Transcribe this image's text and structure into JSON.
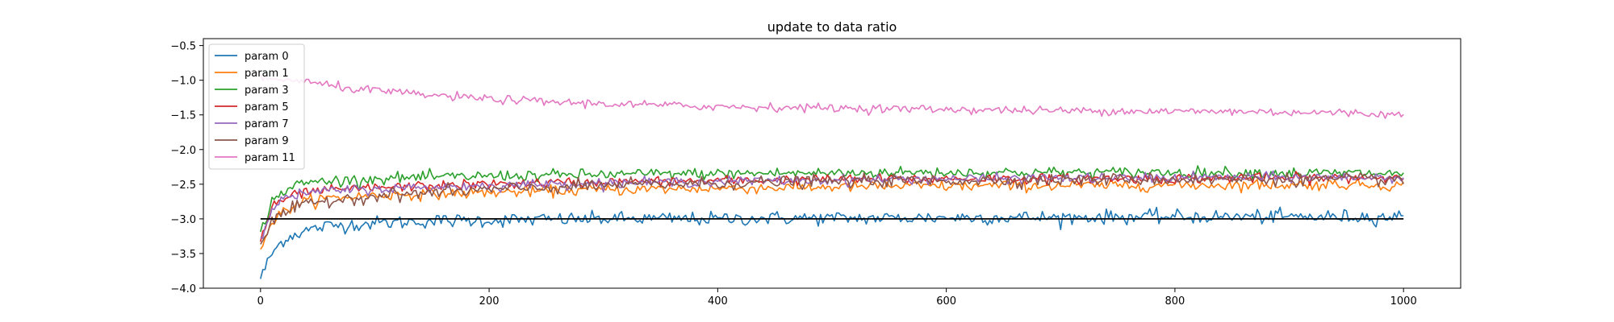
{
  "chart_data": {
    "type": "line",
    "title": "update to data ratio",
    "xlabel": "",
    "ylabel": "",
    "xlim": [
      -50,
      1050
    ],
    "ylim": [
      -4.0,
      -0.4
    ],
    "xticks": [
      0,
      200,
      400,
      600,
      800,
      1000
    ],
    "xtick_labels": [
      "0",
      "200",
      "400",
      "600",
      "800",
      "1000"
    ],
    "yticks": [
      -4.0,
      -3.5,
      -3.0,
      -2.5,
      -2.0,
      -1.5,
      -1.0,
      -0.5
    ],
    "ytick_labels": [
      "−4.0",
      "−3.5",
      "−3.0",
      "−2.5",
      "−2.0",
      "−1.5",
      "−1.0",
      "−0.5"
    ],
    "grid": false,
    "legend_position": "top-left",
    "x": [
      0,
      10,
      20,
      30,
      40,
      50,
      60,
      80,
      100,
      120,
      150,
      200,
      250,
      300,
      350,
      400,
      450,
      500,
      550,
      600,
      650,
      700,
      750,
      800,
      850,
      900,
      950,
      1000
    ],
    "series": [
      {
        "name": "param 0",
        "color": "#1f77b4",
        "noise": 0.05,
        "values": [
          -3.85,
          -3.5,
          -3.3,
          -3.22,
          -3.17,
          -3.13,
          -3.1,
          -3.08,
          -3.06,
          -3.05,
          -3.03,
          -3.02,
          -3.01,
          -3.0,
          -3.0,
          -3.0,
          -2.99,
          -2.99,
          -2.99,
          -2.98,
          -2.98,
          -2.98,
          -2.97,
          -2.97,
          -2.97,
          -2.97,
          -2.97,
          -2.97
        ]
      },
      {
        "name": "param 1",
        "color": "#ff7f0e",
        "noise": 0.04,
        "values": [
          -3.4,
          -3.05,
          -2.9,
          -2.8,
          -2.75,
          -2.72,
          -2.7,
          -2.68,
          -2.66,
          -2.65,
          -2.64,
          -2.62,
          -2.6,
          -2.58,
          -2.57,
          -2.56,
          -2.55,
          -2.54,
          -2.53,
          -2.53,
          -2.52,
          -2.52,
          -2.52,
          -2.51,
          -2.51,
          -2.51,
          -2.5,
          -2.52
        ]
      },
      {
        "name": "param 3",
        "color": "#2ca02c",
        "noise": 0.04,
        "values": [
          -3.2,
          -2.75,
          -2.6,
          -2.52,
          -2.48,
          -2.46,
          -2.45,
          -2.44,
          -2.42,
          -2.41,
          -2.4,
          -2.38,
          -2.37,
          -2.36,
          -2.35,
          -2.35,
          -2.34,
          -2.34,
          -2.33,
          -2.33,
          -2.33,
          -2.33,
          -2.33,
          -2.33,
          -2.33,
          -2.34,
          -2.34,
          -2.35
        ]
      },
      {
        "name": "param 5",
        "color": "#d62728",
        "noise": 0.035,
        "values": [
          -3.3,
          -2.85,
          -2.72,
          -2.66,
          -2.62,
          -2.6,
          -2.59,
          -2.57,
          -2.55,
          -2.54,
          -2.52,
          -2.5,
          -2.48,
          -2.47,
          -2.46,
          -2.45,
          -2.44,
          -2.43,
          -2.43,
          -2.42,
          -2.42,
          -2.42,
          -2.42,
          -2.42,
          -2.41,
          -2.41,
          -2.41,
          -2.4
        ]
      },
      {
        "name": "param 7",
        "color": "#9467bd",
        "noise": 0.035,
        "values": [
          -3.25,
          -2.85,
          -2.72,
          -2.66,
          -2.63,
          -2.61,
          -2.6,
          -2.58,
          -2.57,
          -2.56,
          -2.54,
          -2.52,
          -2.5,
          -2.48,
          -2.47,
          -2.46,
          -2.45,
          -2.44,
          -2.43,
          -2.42,
          -2.42,
          -2.41,
          -2.41,
          -2.41,
          -2.4,
          -2.4,
          -2.4,
          -2.4
        ]
      },
      {
        "name": "param 9",
        "color": "#8c564b",
        "noise": 0.045,
        "values": [
          -3.35,
          -3.05,
          -2.92,
          -2.85,
          -2.8,
          -2.76,
          -2.73,
          -2.7,
          -2.67,
          -2.65,
          -2.62,
          -2.58,
          -2.55,
          -2.52,
          -2.5,
          -2.49,
          -2.47,
          -2.46,
          -2.45,
          -2.45,
          -2.44,
          -2.44,
          -2.43,
          -2.43,
          -2.43,
          -2.43,
          -2.43,
          -2.43
        ]
      },
      {
        "name": "param 11",
        "color": "#e377c2",
        "noise": 0.03,
        "values": [
          -1.0,
          -0.99,
          -0.99,
          -1.0,
          -1.02,
          -1.05,
          -1.08,
          -1.12,
          -1.15,
          -1.18,
          -1.22,
          -1.27,
          -1.31,
          -1.34,
          -1.36,
          -1.38,
          -1.39,
          -1.4,
          -1.41,
          -1.42,
          -1.43,
          -1.44,
          -1.44,
          -1.45,
          -1.45,
          -1.46,
          -1.47,
          -1.5
        ]
      }
    ],
    "reference_line": {
      "y": -3.0,
      "x_range": [
        0,
        1000
      ],
      "color": "#000000"
    }
  }
}
